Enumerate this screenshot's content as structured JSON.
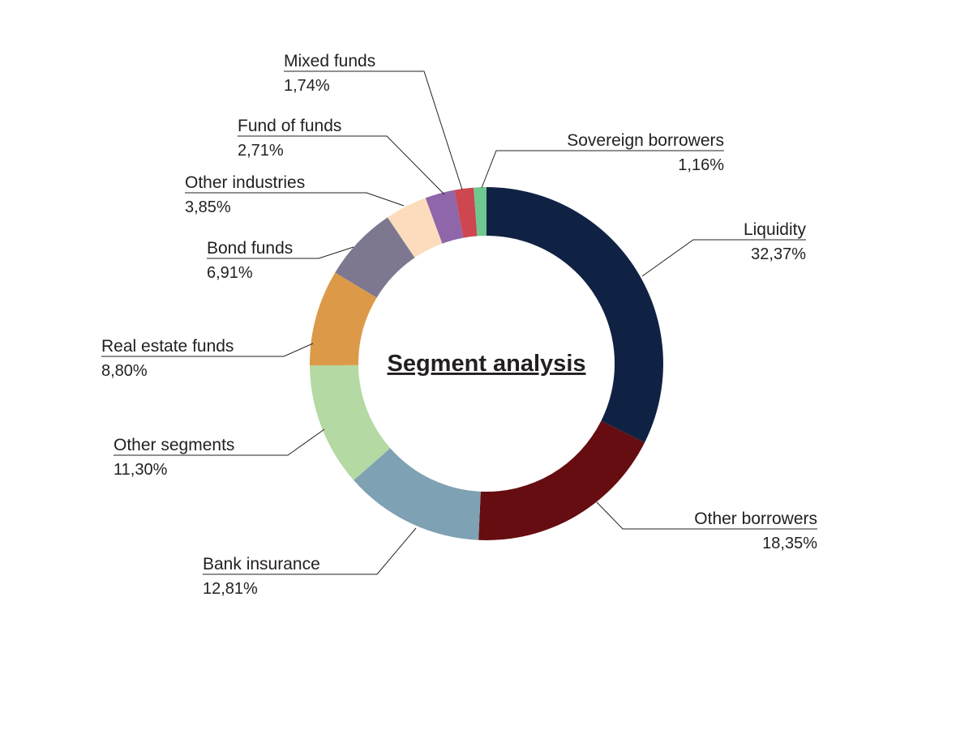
{
  "chart_data": {
    "type": "pie",
    "variant": "donut",
    "title": "Segment analysis",
    "slices": [
      {
        "key": "liquidity",
        "label": "Liquidity",
        "value": 32.37,
        "value_text": "32,37%",
        "color": "#102244"
      },
      {
        "key": "other-borrowers",
        "label": "Other borrowers",
        "value": 18.35,
        "value_text": "18,35%",
        "color": "#650d10"
      },
      {
        "key": "bank-insurance",
        "label": "Bank insurance",
        "value": 12.81,
        "value_text": "12,81%",
        "color": "#7ea1b4"
      },
      {
        "key": "other-segments",
        "label": "Other segments",
        "value": 11.3,
        "value_text": "11,30%",
        "color": "#b4d9a3"
      },
      {
        "key": "real-estate-funds",
        "label": "Real estate funds",
        "value": 8.8,
        "value_text": "8,80%",
        "color": "#dc9a49"
      },
      {
        "key": "bond-funds",
        "label": "Bond funds",
        "value": 6.91,
        "value_text": "6,91%",
        "color": "#7d7890"
      },
      {
        "key": "other-industries",
        "label": "Other industries",
        "value": 3.85,
        "value_text": "3,85%",
        "color": "#fcdcbc"
      },
      {
        "key": "fund-of-funds",
        "label": "Fund of funds",
        "value": 2.71,
        "value_text": "2,71%",
        "color": "#8f66a9"
      },
      {
        "key": "mixed-funds",
        "label": "Mixed funds",
        "value": 1.74,
        "value_text": "1,74%",
        "color": "#cd4650"
      },
      {
        "key": "sovereign-borrowers",
        "label": "Sovereign borrowers",
        "value": 1.16,
        "value_text": "1,16%",
        "color": "#6ec88f"
      }
    ],
    "start_angle": "12 o'clock",
    "direction": "clockwise",
    "legend": "none"
  }
}
